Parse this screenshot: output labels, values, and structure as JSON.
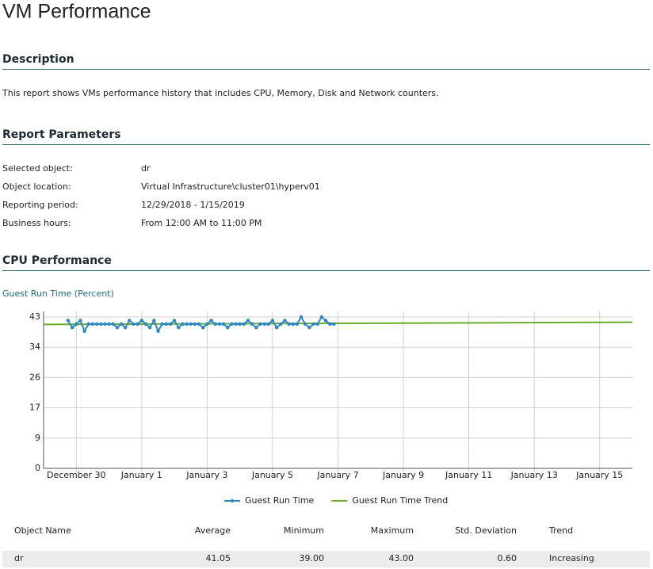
{
  "header": {
    "title": "VM Performance"
  },
  "description": {
    "heading": "Description",
    "text": "This report shows VMs performance history that includes CPU, Memory, Disk and Network counters."
  },
  "parameters": {
    "heading": "Report Parameters",
    "rows": [
      [
        "Selected object:",
        "dr"
      ],
      [
        "Object location:",
        "Virtual Infrastructure\\cluster01\\hyperv01"
      ],
      [
        "Reporting period:",
        "12/29/2018 - 1/15/2019"
      ],
      [
        "Business hours:",
        "From 12:00 AM to 11:00 PM"
      ]
    ]
  },
  "cpu": {
    "heading": "CPU Performance"
  },
  "chart_data": {
    "type": "line",
    "title": "Guest Run Time (Percent)",
    "grid": true,
    "legend": "bottom",
    "xlim": [
      -1,
      17
    ],
    "xticks": [
      {
        "value": 0,
        "label": "December 30"
      },
      {
        "value": 2,
        "label": "January 1"
      },
      {
        "value": 4,
        "label": "January 3"
      },
      {
        "value": 6,
        "label": "January 5"
      },
      {
        "value": 8,
        "label": "January 7"
      },
      {
        "value": 10,
        "label": "January 9"
      },
      {
        "value": 12,
        "label": "January 11"
      },
      {
        "value": 14,
        "label": "January 13"
      },
      {
        "value": 16,
        "label": "January 15"
      }
    ],
    "ylim": [
      0,
      43
    ],
    "yticks": [
      0,
      {
        "value": 8.6,
        "label": "9"
      },
      {
        "value": 17.2,
        "label": "17"
      },
      {
        "value": 25.8,
        "label": "26"
      },
      {
        "value": 34.4,
        "label": "34"
      },
      43
    ],
    "series": [
      {
        "name": "Guest Run Time",
        "color": "#2b87c8",
        "markers": true,
        "x": [
          -0.25,
          -0.125,
          0,
          0.125,
          0.25,
          0.375,
          0.5,
          0.625,
          0.75,
          0.875,
          1,
          1.125,
          1.25,
          1.375,
          1.5,
          1.625,
          1.75,
          1.875,
          2,
          2.125,
          2.25,
          2.375,
          2.5,
          2.625,
          2.75,
          2.875,
          3,
          3.125,
          3.25,
          3.375,
          3.5,
          3.625,
          3.75,
          3.875,
          4,
          4.125,
          4.25,
          4.375,
          4.5,
          4.625,
          4.75,
          4.875,
          5,
          5.125,
          5.25,
          5.375,
          5.5,
          5.625,
          5.75,
          5.875,
          6,
          6.125,
          6.25,
          6.375,
          6.5,
          6.625,
          6.75,
          6.875,
          7,
          7.125,
          7.25,
          7.375,
          7.5,
          7.625,
          7.75,
          7.875
        ],
        "values": [
          42,
          40,
          41,
          42,
          39,
          41,
          41,
          41,
          41,
          41,
          41,
          41,
          40,
          41,
          40,
          42,
          41,
          41,
          42,
          41,
          40,
          42,
          39,
          41,
          41,
          41,
          42,
          40,
          41,
          41,
          41,
          41,
          41,
          40,
          41,
          42,
          41,
          41,
          41,
          40,
          41,
          41,
          41,
          41,
          42,
          41,
          40,
          41,
          41,
          41,
          42,
          40,
          41,
          42,
          41,
          41,
          41,
          43,
          41,
          40,
          41,
          41,
          43,
          42,
          41,
          41
        ]
      },
      {
        "name": "Guest Run Time Trend",
        "color": "#6aac2b",
        "markers": false,
        "x": [
          -1,
          17
        ],
        "values": [
          40.9,
          41.5
        ]
      }
    ]
  },
  "table": {
    "headers": [
      "Object Name",
      "Average",
      "Minimum",
      "Maximum",
      "Std. Deviation",
      "Trend"
    ],
    "rows": [
      [
        "dr",
        "41.05",
        "39.00",
        "43.00",
        "0.60",
        "Increasing"
      ]
    ]
  }
}
